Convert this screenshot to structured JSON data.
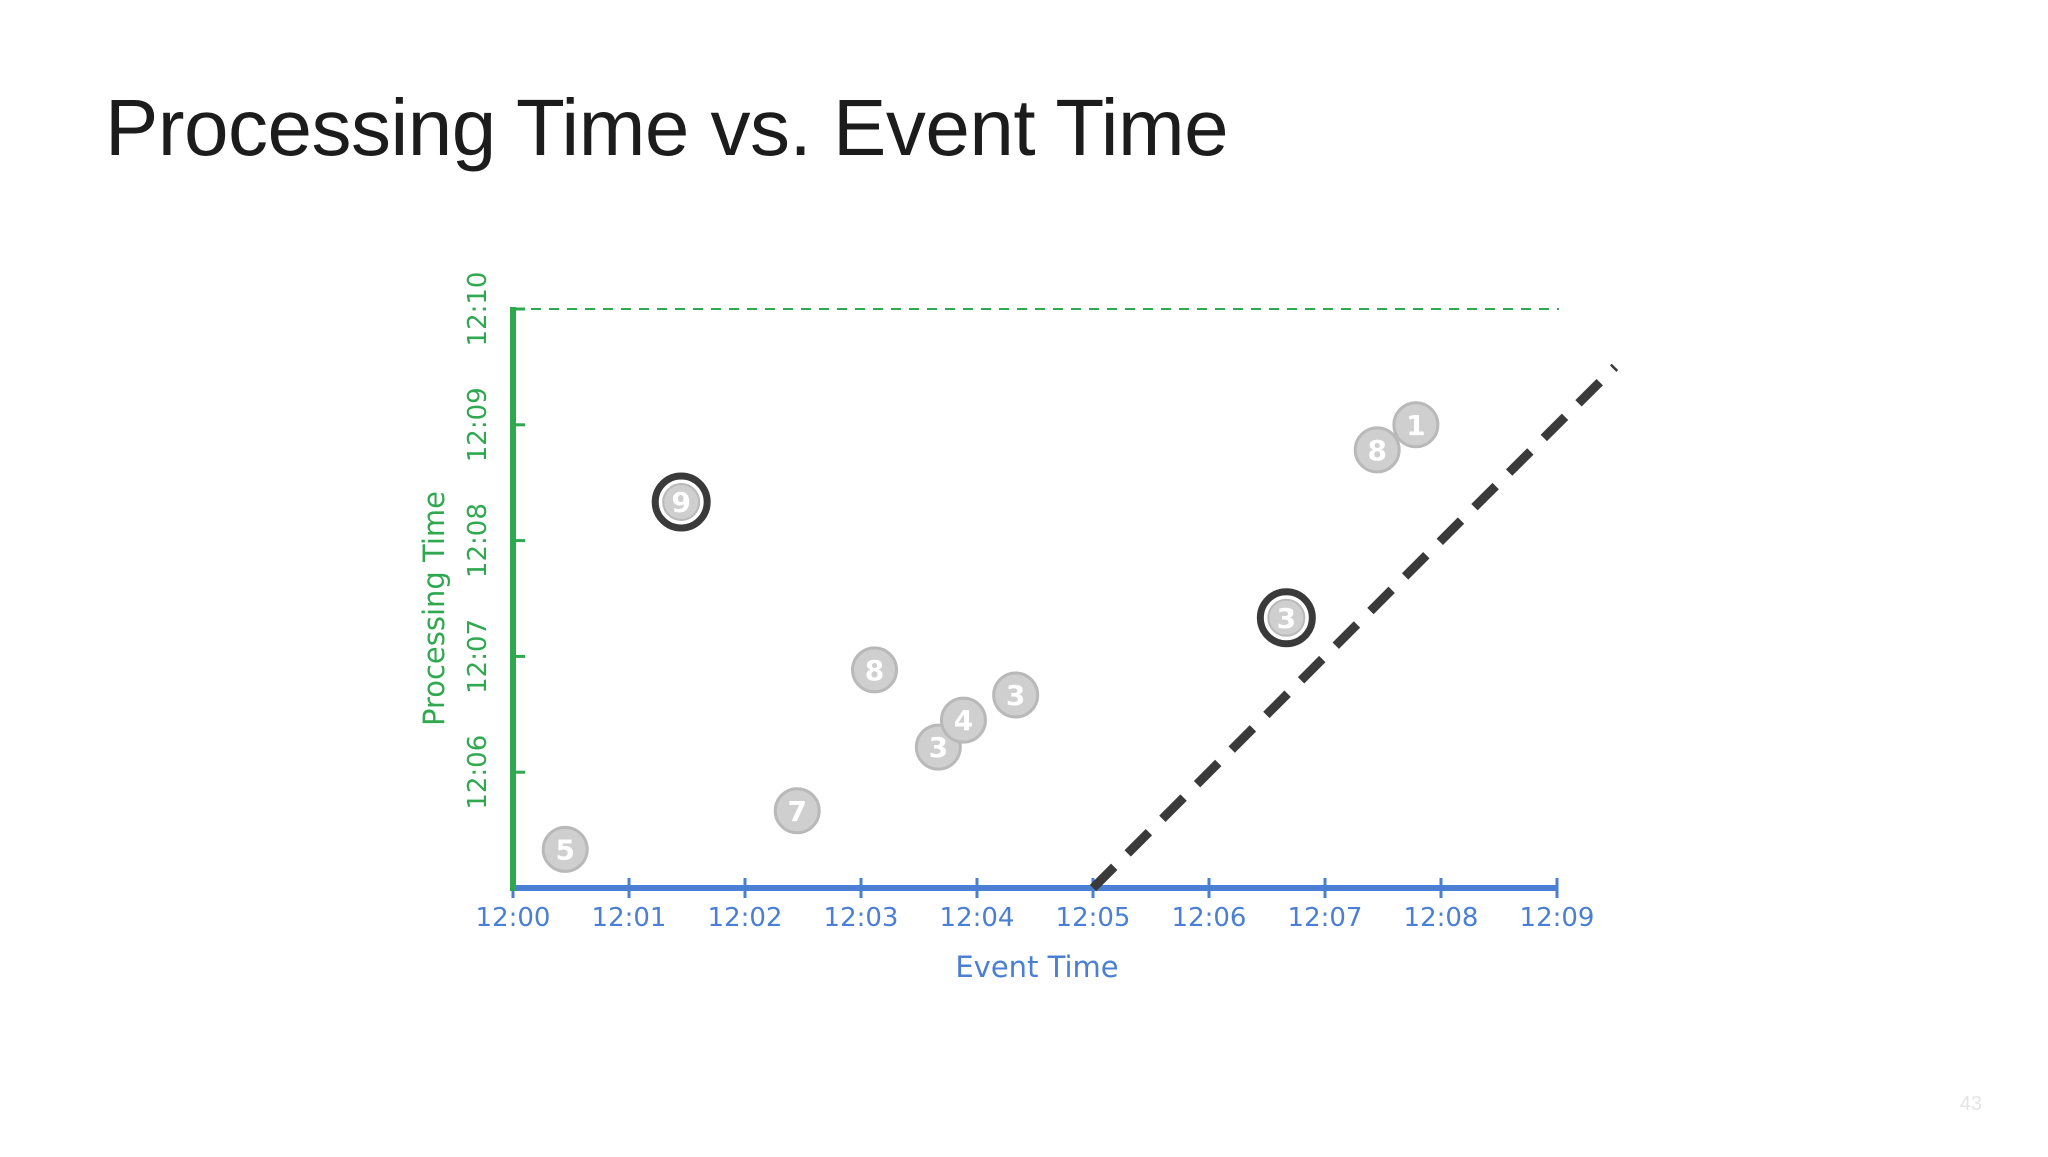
{
  "slide": {
    "title": "Processing Time vs. Event Time",
    "page_number": "43"
  },
  "colors": {
    "event_axis": "#4a7fd4",
    "processing_axis": "#2fa84f",
    "ideal_line": "#3a3a3a",
    "point_fill": "#cfcfcf",
    "point_stroke": "#b9b9b9",
    "point_text": "#ffffff",
    "highlight_ring": "#3a3a3a"
  },
  "chart_data": {
    "type": "scatter",
    "xlabel": "Event Time",
    "ylabel": "Processing Time",
    "x_ticks": [
      "12:00",
      "12:01",
      "12:02",
      "12:03",
      "12:04",
      "12:05",
      "12:06",
      "12:07",
      "12:08",
      "12:09"
    ],
    "y_ticks": [
      "12:06",
      "12:07",
      "12:08",
      "12:09",
      "12:10"
    ],
    "xlim": [
      "12:00",
      "12:09"
    ],
    "ylim": [
      "12:05",
      "12:10"
    ],
    "grid": false,
    "reference_line_y": "12:10",
    "ideal_line": {
      "start": [
        "12:05",
        "12:05"
      ],
      "end": [
        "12:09:30",
        "12:09:30"
      ],
      "style": "dashed"
    },
    "points": [
      {
        "label": "5",
        "x": "12:00:27",
        "y": "12:05:20",
        "highlighted": false
      },
      {
        "label": "9",
        "x": "12:01:27",
        "y": "12:08:20",
        "highlighted": true
      },
      {
        "label": "7",
        "x": "12:02:27",
        "y": "12:05:40",
        "highlighted": false
      },
      {
        "label": "8",
        "x": "12:03:07",
        "y": "12:06:53",
        "highlighted": false
      },
      {
        "label": "3",
        "x": "12:03:40",
        "y": "12:06:13",
        "highlighted": false
      },
      {
        "label": "4",
        "x": "12:03:53",
        "y": "12:06:27",
        "highlighted": false
      },
      {
        "label": "3",
        "x": "12:04:20",
        "y": "12:06:40",
        "highlighted": false
      },
      {
        "label": "3",
        "x": "12:06:40",
        "y": "12:07:20",
        "highlighted": true
      },
      {
        "label": "8",
        "x": "12:07:27",
        "y": "12:08:47",
        "highlighted": false
      },
      {
        "label": "1",
        "x": "12:07:47",
        "y": "12:09:00",
        "highlighted": false
      }
    ]
  }
}
